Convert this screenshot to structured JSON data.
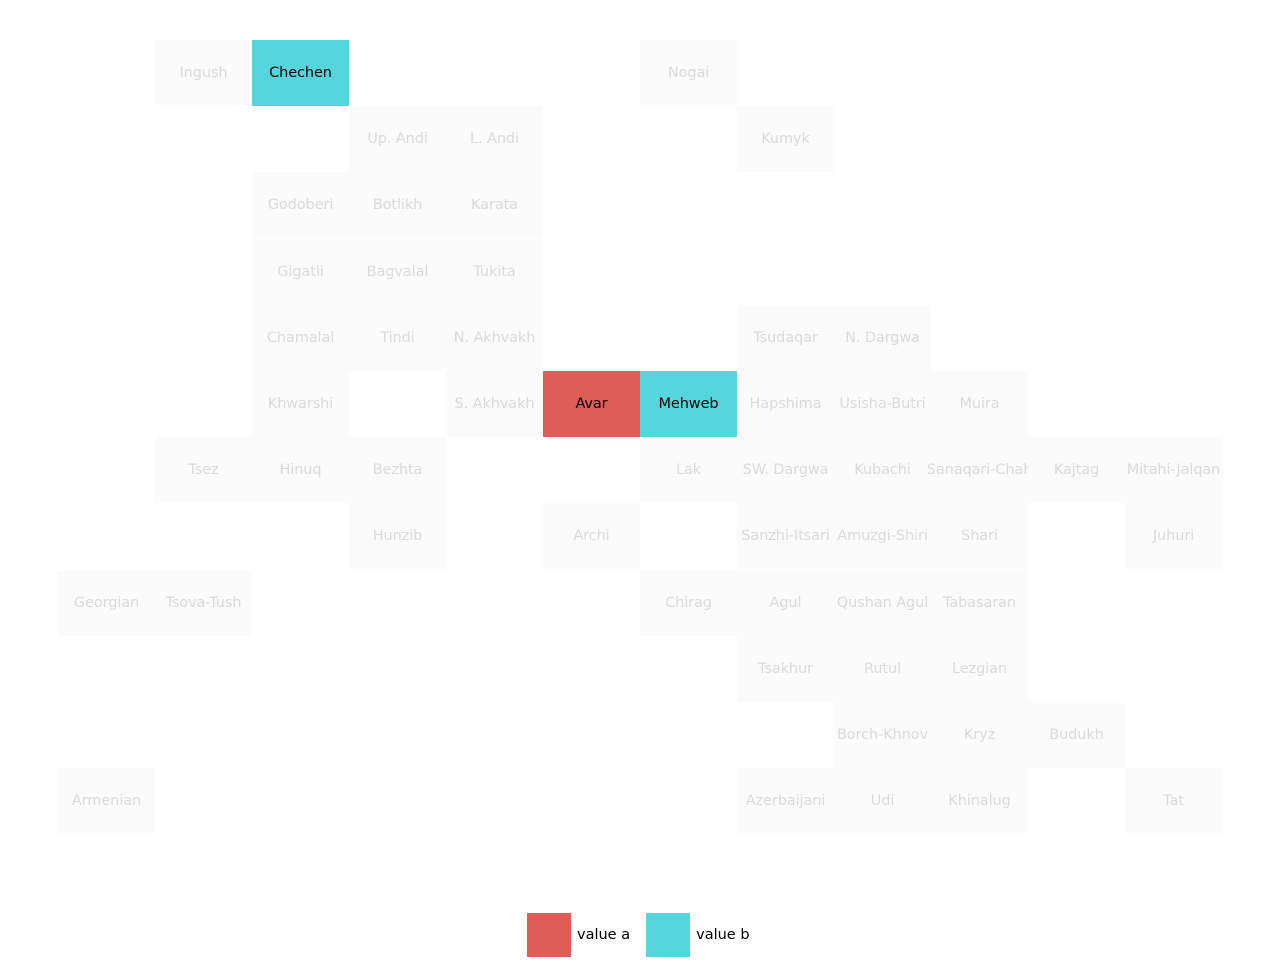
{
  "colors": {
    "value a": "#de5e56",
    "value b": "#57d5dc",
    "none": "#fbfbfb",
    "label_active": "#000000",
    "label_inactive": "#dadada"
  },
  "map_data": {
    "type": "tile-grid",
    "columns": 12,
    "rows": 12,
    "cells": [
      {
        "label": "Ingush",
        "col": 1,
        "row": 0,
        "value": null
      },
      {
        "label": "Chechen",
        "col": 2,
        "row": 0,
        "value": "value b"
      },
      {
        "label": "Nogai",
        "col": 6,
        "row": 0,
        "value": null
      },
      {
        "label": "Up. Andi",
        "col": 3,
        "row": 1,
        "value": null
      },
      {
        "label": "L. Andi",
        "col": 4,
        "row": 1,
        "value": null
      },
      {
        "label": "Kumyk",
        "col": 7,
        "row": 1,
        "value": null
      },
      {
        "label": "Godoberi",
        "col": 2,
        "row": 2,
        "value": null
      },
      {
        "label": "Botlikh",
        "col": 3,
        "row": 2,
        "value": null
      },
      {
        "label": "Karata",
        "col": 4,
        "row": 2,
        "value": null
      },
      {
        "label": "Gigatli",
        "col": 2,
        "row": 3,
        "value": null
      },
      {
        "label": "Bagvalal",
        "col": 3,
        "row": 3,
        "value": null
      },
      {
        "label": "Tukita",
        "col": 4,
        "row": 3,
        "value": null
      },
      {
        "label": "Chamalal",
        "col": 2,
        "row": 4,
        "value": null
      },
      {
        "label": "Tindi",
        "col": 3,
        "row": 4,
        "value": null
      },
      {
        "label": "N. Akhvakh",
        "col": 4,
        "row": 4,
        "value": null
      },
      {
        "label": "Tsudaqar",
        "col": 7,
        "row": 4,
        "value": null
      },
      {
        "label": "N. Dargwa",
        "col": 8,
        "row": 4,
        "value": null
      },
      {
        "label": "Khwarshi",
        "col": 2,
        "row": 5,
        "value": null
      },
      {
        "label": "S. Akhvakh",
        "col": 4,
        "row": 5,
        "value": null
      },
      {
        "label": "Avar",
        "col": 5,
        "row": 5,
        "value": "value a"
      },
      {
        "label": "Mehweb",
        "col": 6,
        "row": 5,
        "value": "value b"
      },
      {
        "label": "Hapshima",
        "col": 7,
        "row": 5,
        "value": null
      },
      {
        "label": "Usisha-Butri",
        "col": 8,
        "row": 5,
        "value": null
      },
      {
        "label": "Muira",
        "col": 9,
        "row": 5,
        "value": null
      },
      {
        "label": "Tsez",
        "col": 1,
        "row": 6,
        "value": null
      },
      {
        "label": "Hinuq",
        "col": 2,
        "row": 6,
        "value": null
      },
      {
        "label": "Bezhta",
        "col": 3,
        "row": 6,
        "value": null
      },
      {
        "label": "Lak",
        "col": 6,
        "row": 6,
        "value": null
      },
      {
        "label": "SW. Dargwa",
        "col": 7,
        "row": 6,
        "value": null
      },
      {
        "label": "Kubachi",
        "col": 8,
        "row": 6,
        "value": null
      },
      {
        "label": "Sanaqari-Chah",
        "col": 9,
        "row": 6,
        "value": null
      },
      {
        "label": "Kajtag",
        "col": 10,
        "row": 6,
        "value": null
      },
      {
        "label": "Mitahi-Jalqan",
        "col": 11,
        "row": 6,
        "value": null
      },
      {
        "label": "Hunzib",
        "col": 3,
        "row": 7,
        "value": null
      },
      {
        "label": "Archi",
        "col": 5,
        "row": 7,
        "value": null
      },
      {
        "label": "Sanzhi-Itsari",
        "col": 7,
        "row": 7,
        "value": null
      },
      {
        "label": "Amuzgi-Shiri",
        "col": 8,
        "row": 7,
        "value": null
      },
      {
        "label": "Shari",
        "col": 9,
        "row": 7,
        "value": null
      },
      {
        "label": "Juhuri",
        "col": 11,
        "row": 7,
        "value": null
      },
      {
        "label": "Georgian",
        "col": 0,
        "row": 8,
        "value": null
      },
      {
        "label": "Tsova-Tush",
        "col": 1,
        "row": 8,
        "value": null
      },
      {
        "label": "Chirag",
        "col": 6,
        "row": 8,
        "value": null
      },
      {
        "label": "Agul",
        "col": 7,
        "row": 8,
        "value": null
      },
      {
        "label": "Qushan Agul",
        "col": 8,
        "row": 8,
        "value": null
      },
      {
        "label": "Tabasaran",
        "col": 9,
        "row": 8,
        "value": null
      },
      {
        "label": "Tsakhur",
        "col": 7,
        "row": 9,
        "value": null
      },
      {
        "label": "Rutul",
        "col": 8,
        "row": 9,
        "value": null
      },
      {
        "label": "Lezgian",
        "col": 9,
        "row": 9,
        "value": null
      },
      {
        "label": "Borch-Khnov",
        "col": 8,
        "row": 10,
        "value": null
      },
      {
        "label": "Kryz",
        "col": 9,
        "row": 10,
        "value": null
      },
      {
        "label": "Budukh",
        "col": 10,
        "row": 10,
        "value": null
      },
      {
        "label": "Armenian",
        "col": 0,
        "row": 11,
        "value": null
      },
      {
        "label": "Azerbaijani",
        "col": 7,
        "row": 11,
        "value": null
      },
      {
        "label": "Udi",
        "col": 8,
        "row": 11,
        "value": null
      },
      {
        "label": "Khinalug",
        "col": 9,
        "row": 11,
        "value": null
      },
      {
        "label": "Tat",
        "col": 11,
        "row": 11,
        "value": null
      }
    ]
  },
  "legend": {
    "items": [
      {
        "key": "value a",
        "label": "value a"
      },
      {
        "key": "value b",
        "label": "value b"
      }
    ]
  }
}
